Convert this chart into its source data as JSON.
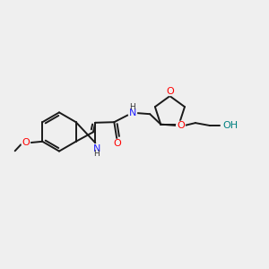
{
  "bg_color": "#efefef",
  "bond_color": "#1a1a1a",
  "bond_width": 1.4,
  "N_color": "#2020ff",
  "O_color": "#ff0000",
  "teal_color": "#008080",
  "text_fontsize": 8.0,
  "figsize": [
    3.0,
    3.0
  ],
  "dpi": 100,
  "xlim": [
    0,
    10
  ],
  "ylim": [
    0,
    10
  ]
}
